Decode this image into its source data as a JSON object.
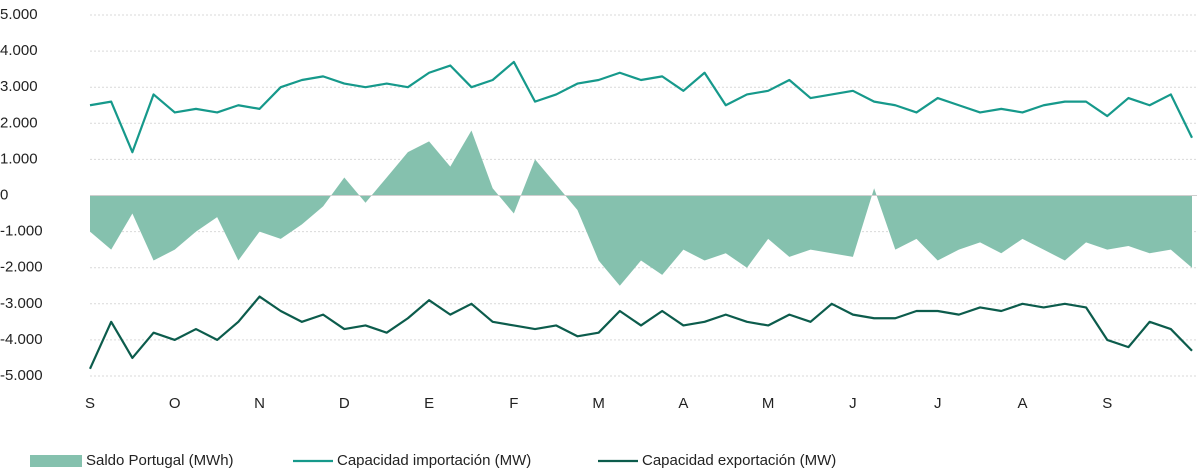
{
  "chart_data": {
    "type": "line",
    "categories": [
      "S",
      null,
      null,
      null,
      "O",
      null,
      null,
      null,
      "N",
      null,
      null,
      null,
      "D",
      null,
      null,
      null,
      "E",
      null,
      null,
      null,
      "F",
      null,
      null,
      null,
      "M",
      null,
      null,
      null,
      "A",
      null,
      null,
      null,
      "M",
      null,
      null,
      null,
      "J",
      null,
      null,
      null,
      "J",
      null,
      null,
      null,
      "A",
      null,
      null,
      null,
      "S",
      null,
      null,
      null,
      null
    ],
    "series": [
      {
        "name": "Saldo Portugal (MWh)",
        "kind": "area",
        "color": "#85c1ae",
        "values": [
          -1000,
          -1500,
          -500,
          -1800,
          -1500,
          -1000,
          -600,
          -1800,
          -1000,
          -1200,
          -800,
          -300,
          500,
          -200,
          500,
          1200,
          1500,
          800,
          1800,
          200,
          -500,
          1000,
          300,
          -400,
          -1800,
          -2500,
          -1800,
          -2200,
          -1500,
          -1800,
          -1600,
          -2000,
          -1200,
          -1700,
          -1500,
          -1600,
          -1700,
          200,
          -1500,
          -1200,
          -1800,
          -1500,
          -1300,
          -1600,
          -1200,
          -1500,
          -1800,
          -1300,
          -1500,
          -1400,
          -1600,
          -1500,
          -2000
        ]
      },
      {
        "name": "Capacidad importación (MW)",
        "kind": "line",
        "color": "#16998b",
        "values": [
          2500,
          2600,
          1200,
          2800,
          2300,
          2400,
          2300,
          2500,
          2400,
          3000,
          3200,
          3300,
          3100,
          3000,
          3100,
          3000,
          3400,
          3600,
          3000,
          3200,
          3700,
          2600,
          2800,
          3100,
          3200,
          3400,
          3200,
          3300,
          2900,
          3400,
          2500,
          2800,
          2900,
          3200,
          2700,
          2800,
          2900,
          2600,
          2500,
          2300,
          2700,
          2500,
          2300,
          2400,
          2300,
          2500,
          2600,
          2600,
          2200,
          2700,
          2500,
          2800,
          1600
        ]
      },
      {
        "name": "Capacidad exportación (MW)",
        "kind": "line",
        "color": "#0c5c4c",
        "values": [
          -4800,
          -3500,
          -4500,
          -3800,
          -4000,
          -3700,
          -4000,
          -3500,
          -2800,
          -3200,
          -3500,
          -3300,
          -3700,
          -3600,
          -3800,
          -3400,
          -2900,
          -3300,
          -3000,
          -3500,
          -3600,
          -3700,
          -3600,
          -3900,
          -3800,
          -3200,
          -3600,
          -3200,
          -3600,
          -3500,
          -3300,
          -3500,
          -3600,
          -3300,
          -3500,
          -3000,
          -3300,
          -3400,
          -3400,
          -3200,
          -3200,
          -3300,
          -3100,
          -3200,
          -3000,
          -3100,
          -3000,
          -3100,
          -4000,
          -4200,
          -3500,
          -3700,
          -4300
        ]
      }
    ],
    "ylim": [
      -5000,
      5000
    ],
    "yticks": [
      {
        "value": -5000,
        "label": "-5.000"
      },
      {
        "value": -4000,
        "label": "-4.000"
      },
      {
        "value": -3000,
        "label": "-3.000"
      },
      {
        "value": -2000,
        "label": "-2.000"
      },
      {
        "value": -1000,
        "label": "-1.000"
      },
      0,
      {
        "value": 1000,
        "label": "1.000"
      },
      {
        "value": 2000,
        "label": "2.000"
      },
      {
        "value": 3000,
        "label": "3.000"
      },
      {
        "value": 4000,
        "label": "4.000"
      },
      {
        "value": 5000,
        "label": "5.000"
      }
    ],
    "grid": true
  }
}
